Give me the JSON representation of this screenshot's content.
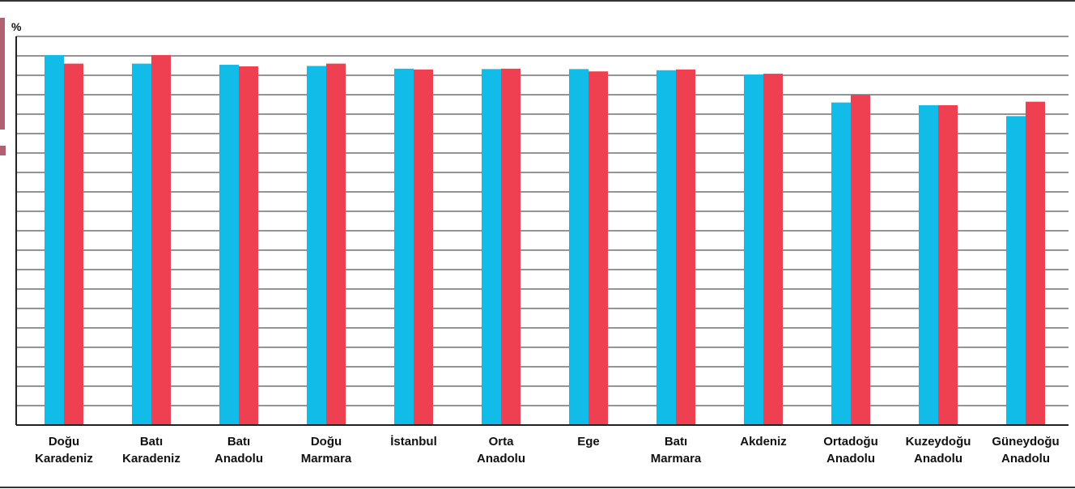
{
  "chart_data": {
    "type": "bar",
    "unit_label": "%",
    "categories": [
      [
        "Doğu",
        "Karadeniz"
      ],
      [
        "Batı",
        "Karadeniz"
      ],
      [
        "Batı",
        "Anadolu"
      ],
      [
        "Doğu",
        "Marmara"
      ],
      [
        "İstanbul"
      ],
      [
        "Orta",
        "Anadolu"
      ],
      [
        "Ege"
      ],
      [
        "Batı",
        "Marmara"
      ],
      [
        "Akdeniz"
      ],
      [
        "Ortadoğu",
        "Anadolu"
      ],
      [
        "Kuzeydoğu",
        "Anadolu"
      ],
      [
        "Güneydoğu",
        "Anadolu"
      ]
    ],
    "series": [
      {
        "color": "#12bce8",
        "values": [
          95.2,
          93.0,
          92.7,
          92.4,
          91.7,
          91.6,
          91.6,
          91.3,
          90.2,
          83.0,
          82.3,
          79.5
        ]
      },
      {
        "color": "#ee4050",
        "values": [
          93.0,
          95.2,
          92.3,
          93.0,
          91.5,
          91.7,
          91.0,
          91.5,
          90.4,
          85.0,
          82.3,
          83.2
        ]
      }
    ],
    "ylim": [
      0,
      100
    ],
    "y_gridlines": 20,
    "grid": true,
    "legend": "none"
  },
  "decor": {
    "frame_color": "#333333",
    "grid_color": "#555555",
    "accent_color": "#b06070"
  }
}
